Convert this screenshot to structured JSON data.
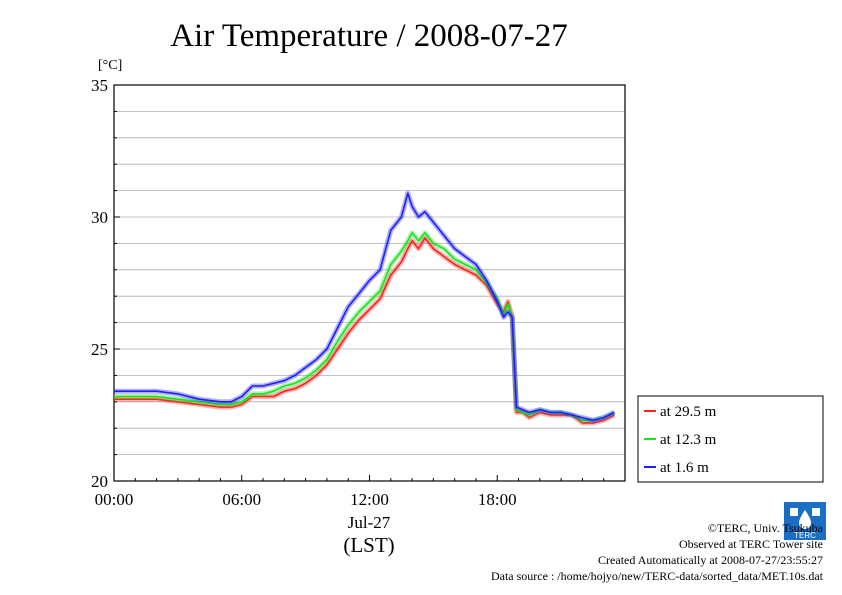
{
  "chart_data": {
    "type": "line",
    "title": "Air Temperature / 2008-07-27",
    "yunit": "[°C]",
    "ylim": [
      20,
      35
    ],
    "yticks": [
      20,
      25,
      30,
      35
    ],
    "xlim": [
      "00:00",
      "24:00"
    ],
    "xticks": [
      "00:00",
      "06:00",
      "12:00",
      "18:00"
    ],
    "xdate": "Jul-27",
    "xlabel": "(LST)",
    "grid": true,
    "legend_position": "right",
    "series": [
      {
        "name": "at 29.5 m",
        "color": "#ff2020",
        "x": [
          0,
          1,
          2,
          3,
          4,
          5,
          5.5,
          6,
          6.5,
          7,
          7.5,
          8,
          8.5,
          9,
          9.5,
          10,
          10.5,
          11,
          11.5,
          12,
          12.5,
          13,
          13.5,
          13.8,
          14,
          14.3,
          14.6,
          15,
          15.5,
          16,
          16.5,
          17,
          17.5,
          18,
          18.3,
          18.5,
          18.7,
          18.9,
          19.2,
          19.5,
          20,
          20.5,
          21,
          21.5,
          22,
          22.5,
          23,
          23.5
        ],
        "y": [
          23.1,
          23.1,
          23.1,
          23.0,
          22.9,
          22.8,
          22.8,
          22.9,
          23.2,
          23.2,
          23.2,
          23.4,
          23.5,
          23.7,
          24.0,
          24.4,
          25.0,
          25.6,
          26.1,
          26.5,
          26.9,
          27.8,
          28.3,
          28.8,
          29.1,
          28.8,
          29.2,
          28.8,
          28.5,
          28.2,
          28.0,
          27.8,
          27.4,
          26.7,
          26.4,
          26.8,
          26.2,
          22.6,
          22.6,
          22.4,
          22.6,
          22.5,
          22.5,
          22.5,
          22.2,
          22.2,
          22.3,
          22.5
        ]
      },
      {
        "name": "at 12.3 m",
        "color": "#20e020",
        "x": [
          0,
          1,
          2,
          3,
          4,
          5,
          5.5,
          6,
          6.5,
          7,
          7.5,
          8,
          8.5,
          9,
          9.5,
          10,
          10.5,
          11,
          11.5,
          12,
          12.5,
          13,
          13.5,
          13.8,
          14,
          14.3,
          14.6,
          15,
          15.5,
          16,
          16.5,
          17,
          17.5,
          18,
          18.3,
          18.5,
          18.7,
          18.9,
          19.2,
          19.5,
          20,
          20.5,
          21,
          21.5,
          22,
          22.5,
          23,
          23.5
        ],
        "y": [
          23.2,
          23.2,
          23.2,
          23.1,
          23.0,
          22.9,
          22.9,
          23.0,
          23.3,
          23.3,
          23.4,
          23.6,
          23.7,
          23.9,
          24.2,
          24.6,
          25.3,
          25.9,
          26.4,
          26.8,
          27.2,
          28.2,
          28.7,
          29.1,
          29.4,
          29.1,
          29.4,
          29.0,
          28.8,
          28.4,
          28.2,
          28.0,
          27.5,
          26.9,
          26.3,
          26.7,
          26.2,
          22.7,
          22.6,
          22.5,
          22.7,
          22.6,
          22.6,
          22.5,
          22.3,
          22.3,
          22.4,
          22.6
        ]
      },
      {
        "name": "at 1.6 m",
        "color": "#2020ff",
        "x": [
          0,
          1,
          2,
          3,
          4,
          5,
          5.5,
          6,
          6.5,
          7,
          7.5,
          8,
          8.5,
          9,
          9.5,
          10,
          10.5,
          11,
          11.5,
          12,
          12.5,
          13,
          13.5,
          13.8,
          14,
          14.3,
          14.6,
          15,
          15.5,
          16,
          16.5,
          17,
          17.5,
          18,
          18.3,
          18.5,
          18.7,
          18.9,
          19.2,
          19.5,
          20,
          20.5,
          21,
          21.5,
          22,
          22.5,
          23,
          23.5
        ],
        "y": [
          23.4,
          23.4,
          23.4,
          23.3,
          23.1,
          23.0,
          23.0,
          23.2,
          23.6,
          23.6,
          23.7,
          23.8,
          24.0,
          24.3,
          24.6,
          25.0,
          25.8,
          26.6,
          27.1,
          27.6,
          28.0,
          29.5,
          30.0,
          30.9,
          30.4,
          30.0,
          30.2,
          29.8,
          29.3,
          28.8,
          28.5,
          28.2,
          27.6,
          26.8,
          26.2,
          26.4,
          26.2,
          22.8,
          22.7,
          22.6,
          22.7,
          22.6,
          22.6,
          22.5,
          22.4,
          22.3,
          22.4,
          22.6
        ]
      }
    ]
  },
  "footer": {
    "line1": "©TERC, Univ. Tsukuba",
    "line2": "Observed at TERC Tower site",
    "line3": "Created Automatically at 2008-07-27/23:55:27",
    "line4": "Data source : /home/hojyo/new/TERC-data/sorted_data/MET.10s.dat"
  },
  "logo": {
    "text": "TERC",
    "color": "#1a6fc4"
  }
}
